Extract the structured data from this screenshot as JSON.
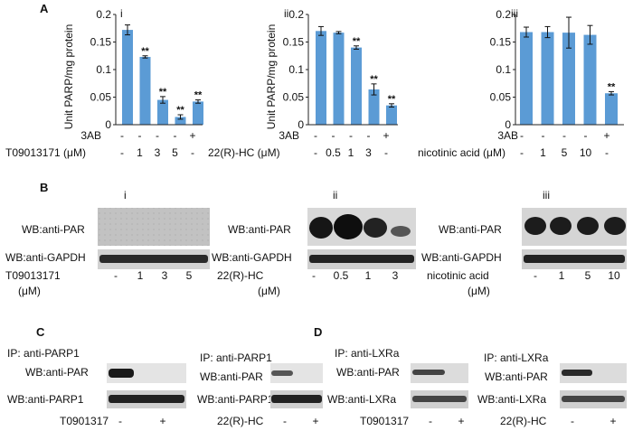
{
  "panels": {
    "A": {
      "label": "A",
      "charts": [
        {
          "sub": "i",
          "ylabel": "Unit PARP/mg protein",
          "yticks": [
            "0",
            "0.05",
            "0.1",
            "0.15",
            "0.2"
          ],
          "row1_label": "3AB",
          "row1": [
            "-",
            "-",
            "-",
            "-",
            "+"
          ],
          "row2_label": "T09013171 (μM)",
          "row2": [
            "-",
            "1",
            "3",
            "5",
            "-"
          ],
          "stars": [
            "",
            "**",
            "**",
            "**",
            "**"
          ]
        },
        {
          "sub": "ii",
          "ylabel": "Unit PARP/mg protein",
          "yticks": [
            "0",
            "0.05",
            "0.1",
            "0.15",
            "0.2"
          ],
          "row1_label": "3AB",
          "row1": [
            "-",
            "-",
            "-",
            "-",
            "+"
          ],
          "row2_label": "22(R)-HC (μM)",
          "row2": [
            "-",
            "0.5",
            "1",
            "3",
            "-"
          ],
          "stars": [
            "",
            "",
            "**",
            "**",
            "**"
          ]
        },
        {
          "sub": "iii",
          "ylabel": "",
          "yticks": [
            "0",
            "0.05",
            "0.1",
            "0.15",
            "0.2"
          ],
          "row1_label": "3AB",
          "row1": [
            "-",
            "-",
            "-",
            "-",
            "+"
          ],
          "row2_label": "nicotinic acid (μM)",
          "row2": [
            "-",
            "1",
            "5",
            "10",
            "-"
          ],
          "stars": [
            "",
            "",
            "",
            "",
            "**"
          ]
        }
      ]
    },
    "B": {
      "label": "B",
      "blots": [
        {
          "sub": "i",
          "top_label": "WB:anti-PAR",
          "bottom_label": "WB:anti-GAPDH",
          "cond_label": "T09013171",
          "unit": "(μM)",
          "conds": [
            "-",
            "1",
            "3",
            "5"
          ]
        },
        {
          "sub": "ii",
          "top_label": "WB:anti-PAR",
          "bottom_label": "WB:anti-GAPDH",
          "cond_label": "22(R)-HC",
          "unit": "(μM)",
          "conds": [
            "-",
            "0.5",
            "1",
            "3"
          ]
        },
        {
          "sub": "iii",
          "top_label": "WB:anti-PAR",
          "bottom_label": "WB:anti-GAPDH",
          "cond_label": "nicotinic acid",
          "unit": "(μM)",
          "conds": [
            "-",
            "1",
            "5",
            "10"
          ]
        }
      ]
    },
    "C": {
      "label": "C",
      "blots": [
        {
          "ip": "IP: anti-PARP1",
          "top_label": "WB:anti-PAR",
          "bottom_label": "WB:anti-PARP1",
          "cond_label": "T0901317",
          "conds": [
            "-",
            "+"
          ]
        },
        {
          "ip": "IP: anti-PARP1",
          "top_label": "WB:anti-PAR",
          "bottom_label": "WB:anti-PARP1",
          "cond_label": "22(R)-HC",
          "conds": [
            "-",
            "+"
          ]
        }
      ]
    },
    "D": {
      "label": "D",
      "blots": [
        {
          "ip": "IP: anti-LXRa",
          "top_label": "WB:anti-PAR",
          "bottom_label": "WB:anti-LXRa",
          "cond_label": "T0901317",
          "conds": [
            "-",
            "+"
          ]
        },
        {
          "ip": "IP: anti-LXRa",
          "top_label": "WB:anti-PAR",
          "bottom_label": "WB:anti-LXRa",
          "cond_label": "22(R)-HC",
          "conds": [
            "-",
            "+"
          ]
        }
      ]
    }
  },
  "chart_data": [
    {
      "type": "bar",
      "categories": [
        "1",
        "2",
        "3",
        "4",
        "5"
      ],
      "values": [
        0.172,
        0.123,
        0.045,
        0.014,
        0.042
      ],
      "errors": [
        0.009,
        0.002,
        0.006,
        0.004,
        0.003
      ],
      "ylim": [
        0,
        0.2
      ],
      "color": "#5b9bd5"
    },
    {
      "type": "bar",
      "categories": [
        "1",
        "2",
        "3",
        "4",
        "5"
      ],
      "values": [
        0.17,
        0.167,
        0.14,
        0.064,
        0.035
      ],
      "errors": [
        0.008,
        0.002,
        0.003,
        0.01,
        0.003
      ],
      "ylim": [
        0,
        0.2
      ],
      "color": "#5b9bd5"
    },
    {
      "type": "bar",
      "categories": [
        "1",
        "2",
        "3",
        "4",
        "5"
      ],
      "values": [
        0.168,
        0.168,
        0.167,
        0.163,
        0.057
      ],
      "errors": [
        0.009,
        0.01,
        0.028,
        0.017,
        0.003
      ],
      "ylim": [
        0,
        0.2
      ],
      "color": "#5b9bd5"
    }
  ]
}
